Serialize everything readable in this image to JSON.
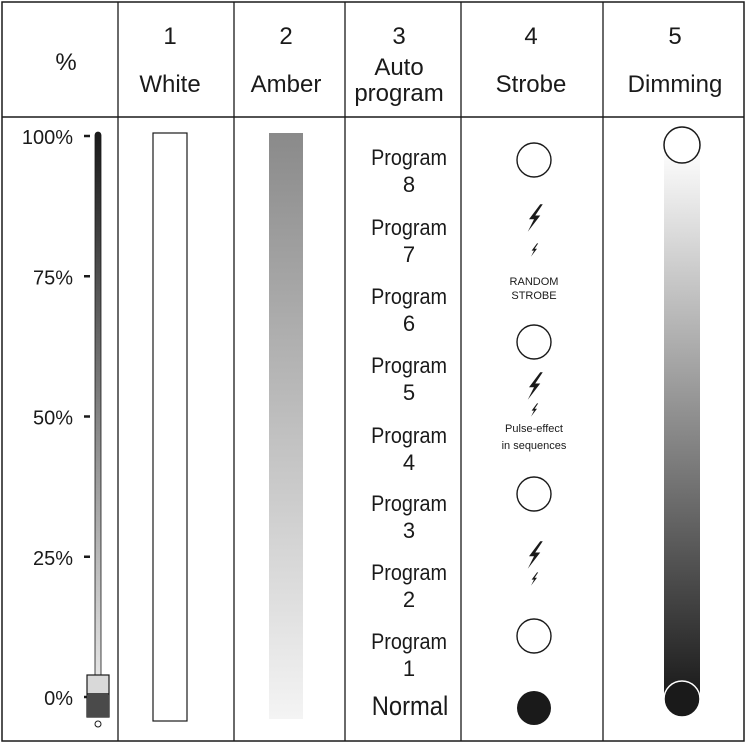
{
  "header": {
    "percent_symbol": "%",
    "columns": [
      {
        "number": "1",
        "label_lines": [
          "White"
        ]
      },
      {
        "number": "2",
        "label_lines": [
          "Amber"
        ]
      },
      {
        "number": "3",
        "label_lines": [
          "Auto",
          "program"
        ]
      },
      {
        "number": "4",
        "label_lines": [
          "Strobe"
        ]
      },
      {
        "number": "5",
        "label_lines": [
          "Dimming"
        ]
      }
    ]
  },
  "scale": {
    "ticks": [
      {
        "label": "100%",
        "value": 100
      },
      {
        "label": "75%",
        "value": 75
      },
      {
        "label": "50%",
        "value": 50
      },
      {
        "label": "25%",
        "value": 25
      },
      {
        "label": "0%",
        "value": 0
      }
    ],
    "slider_value": 0
  },
  "auto_program": {
    "items": [
      {
        "lines": [
          "Program",
          "8"
        ]
      },
      {
        "lines": [
          "Program",
          "7"
        ]
      },
      {
        "lines": [
          "Program",
          "6"
        ]
      },
      {
        "lines": [
          "Program",
          "5"
        ]
      },
      {
        "lines": [
          "Program",
          "4"
        ]
      },
      {
        "lines": [
          "Program",
          "3"
        ]
      },
      {
        "lines": [
          "Program",
          "2"
        ]
      },
      {
        "lines": [
          "Program",
          "1"
        ]
      },
      {
        "lines": [
          "Normal"
        ]
      }
    ]
  },
  "strobe": {
    "items": [
      {
        "type": "open-circle"
      },
      {
        "type": "lightning-decreasing"
      },
      {
        "type": "caption",
        "lines": [
          "RANDOM",
          "STROBE"
        ]
      },
      {
        "type": "open-circle"
      },
      {
        "type": "lightning-decreasing"
      },
      {
        "type": "caption",
        "lines": [
          "Pulse-effect",
          "in sequences"
        ]
      },
      {
        "type": "open-circle"
      },
      {
        "type": "lightning-decreasing"
      },
      {
        "type": "open-circle"
      },
      {
        "type": "filled-circle"
      }
    ]
  },
  "colors": {
    "line": "#1a1a1a",
    "amber_top": "#8a8a8a",
    "amber_bottom": "#f4f4f4",
    "dimming_top": "#ffffff",
    "dimming_bottom": "#1a1a1a"
  }
}
